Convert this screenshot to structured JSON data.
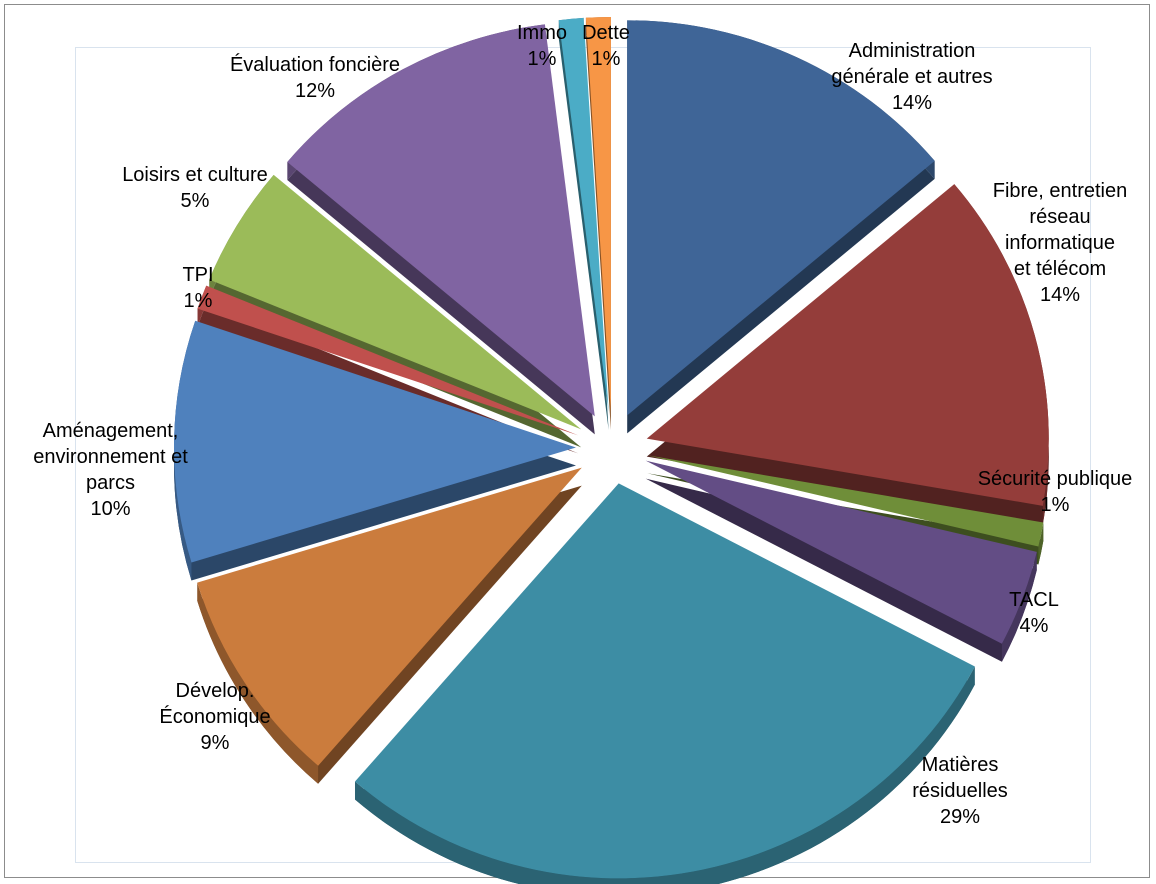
{
  "chart_data": {
    "type": "pie",
    "title": "",
    "style": "3D exploded pie",
    "slices": [
      {
        "label": "Administration générale et autres",
        "percent_label": "14%",
        "value": 14,
        "color": "#3f6597"
      },
      {
        "label": "Fibre, entretien réseau informatique et télécom",
        "percent_label": "14%",
        "value": 14,
        "color": "#943d3a"
      },
      {
        "label": "Sécurité publique",
        "percent_label": "1%",
        "value": 1,
        "color": "#6f8e39"
      },
      {
        "label": "TACL",
        "percent_label": "4%",
        "value": 4,
        "color": "#634d85"
      },
      {
        "label": "Matières résiduelles",
        "percent_label": "29%",
        "value": 29,
        "color": "#3d8da4"
      },
      {
        "label": "Dévelop. Économique",
        "percent_label": "9%",
        "value": 9,
        "color": "#cb7c3d"
      },
      {
        "label": "Aménagement, environnement et parcs",
        "percent_label": "10%",
        "value": 10,
        "color": "#4f81bd"
      },
      {
        "label": "TPI",
        "percent_label": "1%",
        "value": 1,
        "color": "#c0504d"
      },
      {
        "label": "Loisirs et culture",
        "percent_label": "5%",
        "value": 5,
        "color": "#9bbb59"
      },
      {
        "label": "Évaluation foncière",
        "percent_label": "12%",
        "value": 12,
        "color": "#8064a2"
      },
      {
        "label": "Immo",
        "percent_label": "1%",
        "value": 1,
        "color": "#4bacc6"
      },
      {
        "label": "Dette",
        "percent_label": "1%",
        "value": 1,
        "color": "#f79646"
      }
    ]
  }
}
